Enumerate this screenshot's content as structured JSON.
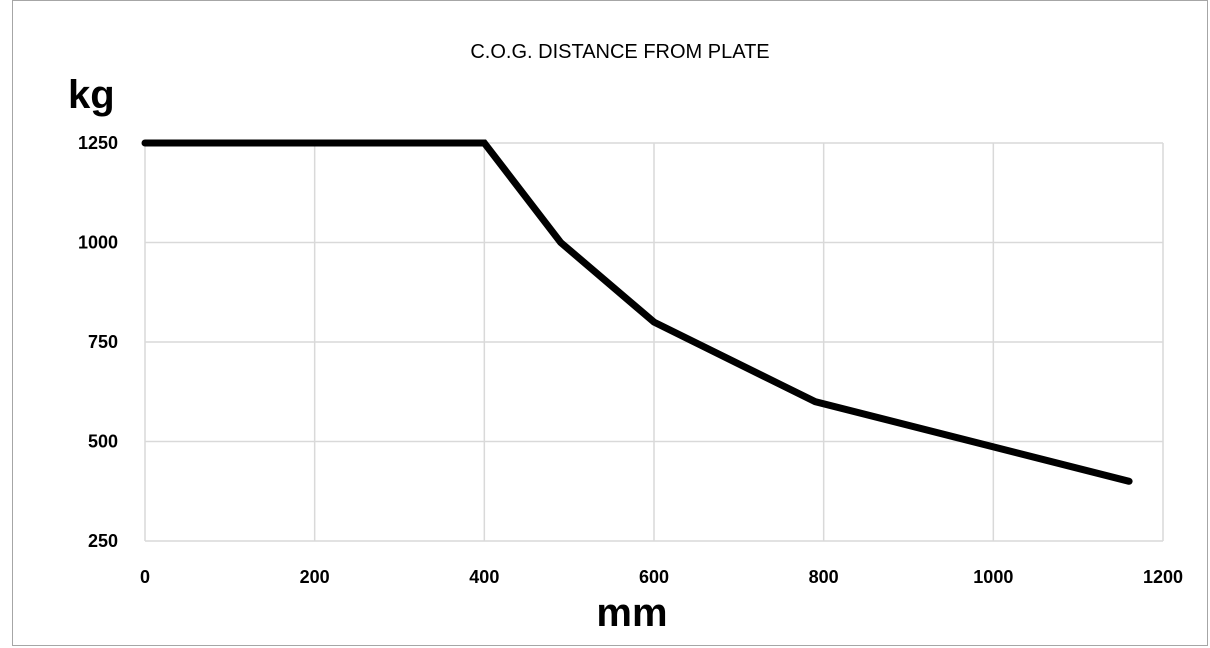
{
  "chart_data": {
    "type": "line",
    "title": "C.O.G. DISTANCE FROM PLATE",
    "xlabel": "mm",
    "ylabel": "kg",
    "xlim": [
      0,
      1200
    ],
    "ylim": [
      250,
      1250
    ],
    "x_ticks": [
      0,
      200,
      400,
      600,
      800,
      1000,
      1200
    ],
    "y_ticks": [
      250,
      500,
      750,
      1000,
      1250
    ],
    "x_tick_labels": [
      "0",
      "200",
      "400",
      "600",
      "800",
      "1000",
      "1200"
    ],
    "y_tick_labels": [
      "250",
      "500",
      "750",
      "1000",
      "1250"
    ],
    "grid": true,
    "series": [
      {
        "color": "#000000",
        "x": [
          0,
          400,
          490,
          600,
          790,
          1160
        ],
        "y": [
          1250,
          1250,
          1000,
          800,
          600,
          400
        ]
      }
    ]
  }
}
